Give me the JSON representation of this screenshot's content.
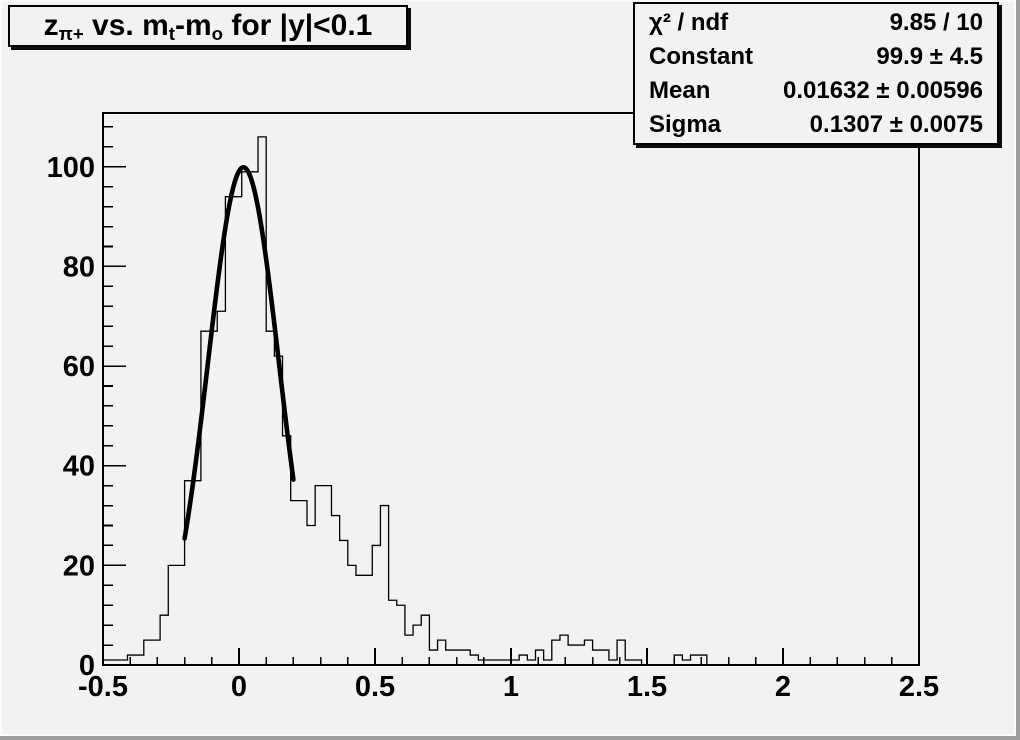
{
  "canvas": {
    "background": "#f2f2f2",
    "edge_shadow": "#9d9d9d",
    "edge_highlight": "#fbfbfb",
    "ink": "#000000"
  },
  "title_box": {
    "plain_text": "z_π+ vs. m_t-m_o for |y|<0.1",
    "parts": [
      {
        "text": "z"
      },
      {
        "text": "π+",
        "sub": true
      },
      {
        "text": " vs. m"
      },
      {
        "text": "t",
        "sub": true
      },
      {
        "text": "-m"
      },
      {
        "text": "o",
        "sub": true
      },
      {
        "text": " for |y|<0.1"
      }
    ]
  },
  "stats_box": {
    "rows": [
      {
        "label": "χ² / ndf",
        "value": "9.85 / 10"
      },
      {
        "label": "Constant",
        "value": "99.9 ± 4.5"
      },
      {
        "label": "Mean",
        "value": "0.01632 ± 0.00596"
      },
      {
        "label": "Sigma",
        "value": "0.1307 ± 0.0075"
      }
    ]
  },
  "chart_data": {
    "type": "bar",
    "subtype": "step-histogram-with-gaussian-fit",
    "title": "z_π+ vs. m_t-m_o for |y|<0.1",
    "xlabel": "",
    "ylabel": "",
    "xlim": [
      -0.5,
      2.5
    ],
    "ylim": [
      0,
      110.8
    ],
    "grid": false,
    "bin_start": -0.5,
    "bin_width": 0.03,
    "bin_counts": [
      1,
      1,
      1,
      2,
      2,
      5,
      5,
      10,
      20,
      20,
      37,
      37,
      67,
      67,
      71,
      94,
      94,
      99,
      99,
      106,
      67,
      62,
      46,
      33,
      33,
      28,
      36,
      36,
      30,
      25,
      20,
      18,
      18,
      24,
      32,
      13,
      12,
      6,
      8,
      10,
      3,
      5,
      3,
      3,
      3,
      2,
      1,
      1,
      1,
      1,
      1,
      2,
      1,
      3,
      1,
      5,
      6,
      4,
      4,
      5,
      3,
      3,
      1,
      5,
      1,
      1,
      0,
      0,
      0,
      0,
      2,
      1,
      2,
      2,
      0,
      0,
      0,
      0,
      0,
      0,
      0,
      0,
      0,
      0,
      0,
      0,
      0,
      0,
      0,
      0,
      0,
      0,
      0,
      0,
      0,
      0,
      0,
      0,
      0,
      0
    ],
    "x_major_ticks": [
      {
        "v": -0.5,
        "label": "-0.5"
      },
      {
        "v": 0,
        "label": "0"
      },
      {
        "v": 0.5,
        "label": "0.5"
      },
      {
        "v": 1,
        "label": "1"
      },
      {
        "v": 1.5,
        "label": "1.5"
      },
      {
        "v": 2,
        "label": "2"
      },
      {
        "v": 2.5,
        "label": "2.5"
      }
    ],
    "x_minor_step": 0.1,
    "y_major_ticks": [
      {
        "v": 0,
        "label": "0"
      },
      {
        "v": 20,
        "label": "20"
      },
      {
        "v": 40,
        "label": "40"
      },
      {
        "v": 60,
        "label": "60"
      },
      {
        "v": 80,
        "label": "80"
      },
      {
        "v": 100,
        "label": "100"
      }
    ],
    "y_minor_step": 4,
    "fit": {
      "type": "gaussian",
      "chi2": 9.85,
      "ndf": 10,
      "constant": 99.9,
      "constant_err": 4.5,
      "mean": 0.01632,
      "mean_err": 0.00596,
      "sigma": 0.1307,
      "sigma_err": 0.0075,
      "draw_range": [
        -0.2,
        0.2
      ]
    },
    "legend": "none",
    "histogram_color": "#000000",
    "fit_color": "#000000"
  }
}
